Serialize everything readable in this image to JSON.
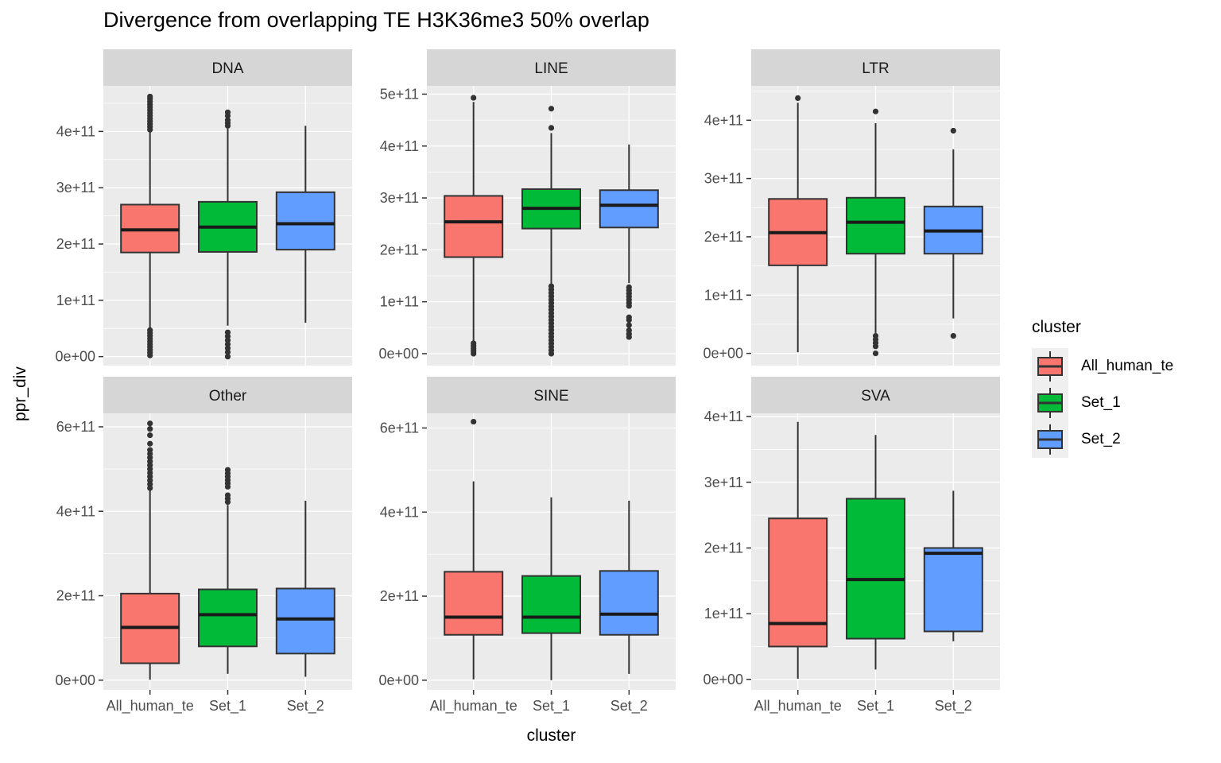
{
  "title": "Divergence from overlapping TE H3K36me3 50% overlap",
  "x_axis_title": "cluster",
  "y_axis_title": "ppr_div",
  "legend": {
    "title": "cluster",
    "items": [
      {
        "label": "All_human_te",
        "color": "#F8766D"
      },
      {
        "label": "Set_1",
        "color": "#00BA38"
      },
      {
        "label": "Set_2",
        "color": "#619CFF"
      }
    ]
  },
  "theme": {
    "panel_bg": "#EBEBEB",
    "strip_bg": "#D6D6D6",
    "grid": "#FFFFFF",
    "axis_text": "#4D4D4D",
    "strip_text": "#1A1A1A",
    "box_outline": "#333333",
    "median_color": "#1A1A1A",
    "outlier": "#333333"
  },
  "chart_data": {
    "type": "boxplot",
    "facet_by": "TE class",
    "x_categories": [
      "All_human_te",
      "Set_1",
      "Set_2"
    ],
    "facets": [
      {
        "name": "DNA",
        "ylim": [
          -16000000000.0,
          481000000000.0
        ],
        "ticks": [
          {
            "v": 0,
            "label": "0e+00"
          },
          {
            "v": 100000000000.0,
            "label": "1e+11"
          },
          {
            "v": 200000000000.0,
            "label": "2e+11"
          },
          {
            "v": 300000000000.0,
            "label": "3e+11"
          },
          {
            "v": 400000000000.0,
            "label": "4e+11"
          }
        ],
        "groups": [
          {
            "cluster": "All_human_te",
            "whisker_low": 50000000000.0,
            "q1": 185000000000.0,
            "median": 225000000000.0,
            "q3": 270000000000.0,
            "whisker_high": 400000000000.0,
            "outliers_high": [
              403000000000.0,
              408000000000.0,
              413000000000.0,
              418000000000.0,
              423000000000.0,
              428000000000.0,
              433000000000.0,
              438000000000.0,
              443000000000.0,
              448000000000.0,
              453000000000.0,
              458000000000.0,
              462000000000.0
            ],
            "outliers_low": [
              2000000000.0,
              7000000000.0,
              12000000000.0,
              17000000000.0,
              22000000000.0,
              27000000000.0,
              32000000000.0,
              37000000000.0,
              42000000000.0,
              47000000000.0
            ]
          },
          {
            "cluster": "Set_1",
            "whisker_low": 55000000000.0,
            "q1": 186000000000.0,
            "median": 230000000000.0,
            "q3": 275000000000.0,
            "whisker_high": 405000000000.0,
            "outliers_high": [
              410000000000.0,
              415000000000.0,
              420000000000.0,
              428000000000.0,
              434000000000.0
            ],
            "outliers_low": [
              0,
              8000000000.0,
              15000000000.0,
              22000000000.0,
              29000000000.0,
              36000000000.0,
              43000000000.0
            ]
          },
          {
            "cluster": "Set_2",
            "whisker_low": 60000000000.0,
            "q1": 190000000000.0,
            "median": 236000000000.0,
            "q3": 292000000000.0,
            "whisker_high": 410000000000.0,
            "outliers_high": [],
            "outliers_low": []
          }
        ]
      },
      {
        "name": "LINE",
        "ylim": [
          -23000000000.0,
          516000000000.0
        ],
        "ticks": [
          {
            "v": 0,
            "label": "0e+00"
          },
          {
            "v": 100000000000.0,
            "label": "1e+11"
          },
          {
            "v": 200000000000.0,
            "label": "2e+11"
          },
          {
            "v": 300000000000.0,
            "label": "3e+11"
          },
          {
            "v": 400000000000.0,
            "label": "4e+11"
          },
          {
            "v": 500000000000.0,
            "label": "5e+11"
          }
        ],
        "groups": [
          {
            "cluster": "All_human_te",
            "whisker_low": 15000000000.0,
            "q1": 186000000000.0,
            "median": 254000000000.0,
            "q3": 304000000000.0,
            "whisker_high": 485000000000.0,
            "outliers_high": [
              493000000000.0
            ],
            "outliers_low": [
              0,
              5000000000.0,
              10000000000.0,
              15000000000.0,
              20000000000.0
            ]
          },
          {
            "cluster": "Set_1",
            "whisker_low": 135000000000.0,
            "q1": 241000000000.0,
            "median": 280000000000.0,
            "q3": 317000000000.0,
            "whisker_high": 425000000000.0,
            "outliers_high": [
              435000000000.0,
              472000000000.0
            ],
            "outliers_low": [
              0,
              6500000000.0,
              13000000000.0,
              19500000000.0,
              26000000000.0,
              32500000000.0,
              39000000000.0,
              45500000000.0,
              52000000000.0,
              58500000000.0,
              65000000000.0,
              71500000000.0,
              78000000000.0,
              84500000000.0,
              91000000000.0,
              97500000000.0,
              104000000000.0,
              110500000000.0,
              117000000000.0,
              123500000000.0,
              130000000000.0
            ]
          },
          {
            "cluster": "Set_2",
            "whisker_low": 136000000000.0,
            "q1": 243000000000.0,
            "median": 286000000000.0,
            "q3": 315000000000.0,
            "whisker_high": 403000000000.0,
            "outliers_high": [],
            "outliers_low": [
              32000000000.0,
              38000000000.0,
              45000000000.0,
              55000000000.0,
              65000000000.0,
              70000000000.0,
              92000000000.0,
              98000000000.0,
              104000000000.0,
              110000000000.0,
              116000000000.0,
              122000000000.0,
              128000000000.0
            ]
          }
        ]
      },
      {
        "name": "LTR",
        "ylim": [
          -21000000000.0,
          459000000000.0
        ],
        "ticks": [
          {
            "v": 0,
            "label": "0e+00"
          },
          {
            "v": 100000000000.0,
            "label": "1e+11"
          },
          {
            "v": 200000000000.0,
            "label": "2e+11"
          },
          {
            "v": 300000000000.0,
            "label": "3e+11"
          },
          {
            "v": 400000000000.0,
            "label": "4e+11"
          }
        ],
        "groups": [
          {
            "cluster": "All_human_te",
            "whisker_low": 2000000000.0,
            "q1": 151000000000.0,
            "median": 207000000000.0,
            "q3": 265000000000.0,
            "whisker_high": 430000000000.0,
            "outliers_high": [
              438000000000.0
            ],
            "outliers_low": []
          },
          {
            "cluster": "Set_1",
            "whisker_low": 35000000000.0,
            "q1": 171000000000.0,
            "median": 225000000000.0,
            "q3": 267000000000.0,
            "whisker_high": 395000000000.0,
            "outliers_high": [
              415000000000.0
            ],
            "outliers_low": [
              0,
              12000000000.0,
              18000000000.0,
              24000000000.0,
              30000000000.0
            ]
          },
          {
            "cluster": "Set_2",
            "whisker_low": 60000000000.0,
            "q1": 171000000000.0,
            "median": 210000000000.0,
            "q3": 252000000000.0,
            "whisker_high": 350000000000.0,
            "outliers_high": [
              382000000000.0
            ],
            "outliers_low": [
              30000000000.0
            ]
          }
        ]
      },
      {
        "name": "Other",
        "ylim": [
          -23000000000.0,
          632000000000.0
        ],
        "ticks": [
          {
            "v": 0,
            "label": "0e+00"
          },
          {
            "v": 200000000000.0,
            "label": "2e+11"
          },
          {
            "v": 400000000000.0,
            "label": "4e+11"
          },
          {
            "v": 600000000000.0,
            "label": "6e+11"
          }
        ],
        "groups": [
          {
            "cluster": "All_human_te",
            "whisker_low": 1000000000.0,
            "q1": 40000000000.0,
            "median": 125000000000.0,
            "q3": 205000000000.0,
            "whisker_high": 450000000000.0,
            "outliers_high": [
              455000000000.0,
              464000000000.0,
              473000000000.0,
              482000000000.0,
              491000000000.0,
              500000000000.0,
              509000000000.0,
              518000000000.0,
              527000000000.0,
              536000000000.0,
              545000000000.0,
              560000000000.0,
              580000000000.0,
              595000000000.0,
              608000000000.0
            ],
            "outliers_low": []
          },
          {
            "cluster": "Set_1",
            "whisker_low": 15000000000.0,
            "q1": 80000000000.0,
            "median": 155000000000.0,
            "q3": 215000000000.0,
            "whisker_high": 415000000000.0,
            "outliers_high": [
              422000000000.0,
              430000000000.0,
              438000000000.0,
              458000000000.0,
              466000000000.0,
              474000000000.0,
              482000000000.0,
              490000000000.0,
              498000000000.0
            ],
            "outliers_low": []
          },
          {
            "cluster": "Set_2",
            "whisker_low": 8000000000.0,
            "q1": 63000000000.0,
            "median": 145000000000.0,
            "q3": 217000000000.0,
            "whisker_high": 425000000000.0,
            "outliers_high": [],
            "outliers_low": []
          }
        ]
      },
      {
        "name": "SINE",
        "ylim": [
          -23000000000.0,
          635000000000.0
        ],
        "ticks": [
          {
            "v": 0,
            "label": "0e+00"
          },
          {
            "v": 200000000000.0,
            "label": "2e+11"
          },
          {
            "v": 400000000000.0,
            "label": "4e+11"
          },
          {
            "v": 600000000000.0,
            "label": "6e+11"
          }
        ],
        "groups": [
          {
            "cluster": "All_human_te",
            "whisker_low": 2000000000.0,
            "q1": 108000000000.0,
            "median": 150000000000.0,
            "q3": 258000000000.0,
            "whisker_high": 473000000000.0,
            "outliers_high": [
              615000000000.0
            ],
            "outliers_low": []
          },
          {
            "cluster": "Set_1",
            "whisker_low": 0,
            "q1": 112000000000.0,
            "median": 150000000000.0,
            "q3": 248000000000.0,
            "whisker_high": 435000000000.0,
            "outliers_high": [],
            "outliers_low": []
          },
          {
            "cluster": "Set_2",
            "whisker_low": 15000000000.0,
            "q1": 108000000000.0,
            "median": 157000000000.0,
            "q3": 260000000000.0,
            "whisker_high": 427000000000.0,
            "outliers_high": [],
            "outliers_low": []
          }
        ]
      },
      {
        "name": "SVA",
        "ylim": [
          -16000000000.0,
          405000000000.0
        ],
        "ticks": [
          {
            "v": 0,
            "label": "0e+00"
          },
          {
            "v": 100000000000.0,
            "label": "1e+11"
          },
          {
            "v": 200000000000.0,
            "label": "2e+11"
          },
          {
            "v": 300000000000.0,
            "label": "3e+11"
          },
          {
            "v": 400000000000.0,
            "label": "4e+11"
          }
        ],
        "groups": [
          {
            "cluster": "All_human_te",
            "whisker_low": 1000000000.0,
            "q1": 50000000000.0,
            "median": 85000000000.0,
            "q3": 245000000000.0,
            "whisker_high": 392000000000.0,
            "outliers_high": [],
            "outliers_low": []
          },
          {
            "cluster": "Set_1",
            "whisker_low": 15000000000.0,
            "q1": 62000000000.0,
            "median": 152000000000.0,
            "q3": 275000000000.0,
            "whisker_high": 372000000000.0,
            "outliers_high": [],
            "outliers_low": []
          },
          {
            "cluster": "Set_2",
            "whisker_low": 58000000000.0,
            "q1": 73000000000.0,
            "median": 192000000000.0,
            "q3": 200000000000.0,
            "whisker_high": 287000000000.0,
            "outliers_high": [],
            "outliers_low": []
          }
        ]
      }
    ]
  }
}
